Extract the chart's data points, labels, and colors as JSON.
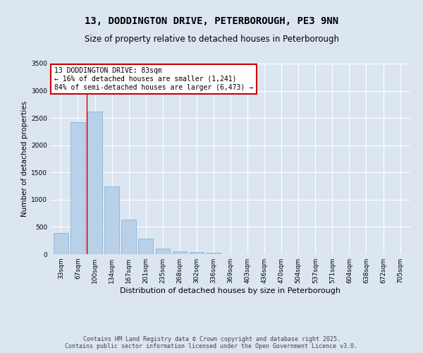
{
  "title1": "13, DODDINGTON DRIVE, PETERBOROUGH, PE3 9NN",
  "title2": "Size of property relative to detached houses in Peterborough",
  "xlabel": "Distribution of detached houses by size in Peterborough",
  "ylabel": "Number of detached properties",
  "categories": [
    "33sqm",
    "67sqm",
    "100sqm",
    "134sqm",
    "167sqm",
    "201sqm",
    "235sqm",
    "268sqm",
    "302sqm",
    "336sqm",
    "369sqm",
    "403sqm",
    "436sqm",
    "470sqm",
    "504sqm",
    "537sqm",
    "571sqm",
    "604sqm",
    "638sqm",
    "672sqm",
    "705sqm"
  ],
  "values": [
    390,
    2420,
    2620,
    1240,
    640,
    280,
    100,
    55,
    40,
    25,
    0,
    0,
    0,
    0,
    0,
    0,
    0,
    0,
    0,
    0,
    0
  ],
  "bar_color": "#b8d0e8",
  "bar_edgecolor": "#7aafd4",
  "annotation_box_text": "13 DODDINGTON DRIVE: 83sqm\n← 16% of detached houses are smaller (1,241)\n84% of semi-detached houses are larger (6,473) →",
  "annotation_box_color": "#cc0000",
  "vline_color": "#cc0000",
  "vline_x": 1.5,
  "ylim": [
    0,
    3500
  ],
  "yticks": [
    0,
    500,
    1000,
    1500,
    2000,
    2500,
    3000,
    3500
  ],
  "background_color": "#dce6f1",
  "plot_bg_color": "#dce6f1",
  "footer_text": "Contains HM Land Registry data © Crown copyright and database right 2025.\nContains public sector information licensed under the Open Government Licence v3.0.",
  "title1_fontsize": 10,
  "title2_fontsize": 8.5,
  "xlabel_fontsize": 8,
  "ylabel_fontsize": 7.5,
  "tick_fontsize": 6.5,
  "annotation_fontsize": 7,
  "footer_fontsize": 6
}
